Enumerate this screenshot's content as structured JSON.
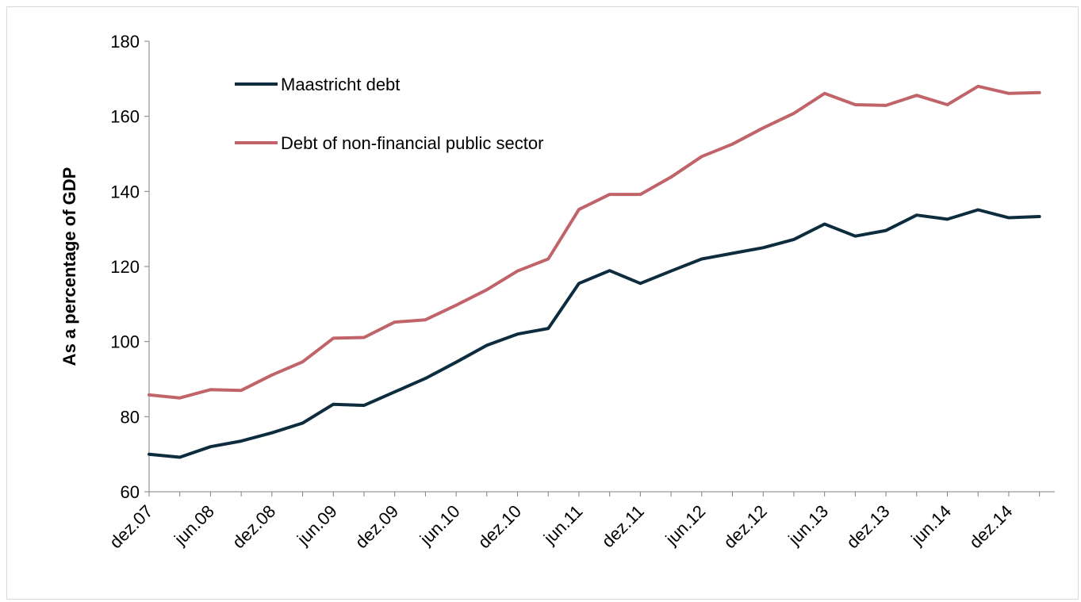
{
  "chart_data": {
    "type": "line",
    "ylabel": "As a percentage of GDP",
    "xlabel": "",
    "ylim": [
      60,
      180
    ],
    "yticks": [
      60,
      80,
      100,
      120,
      140,
      160,
      180
    ],
    "x": [
      "dez.07",
      "mar.08",
      "jun.08",
      "set.08",
      "dez.08",
      "mar.09",
      "jun.09",
      "set.09",
      "dez.09",
      "mar.10",
      "jun.10",
      "set.10",
      "dez.10",
      "mar.11",
      "jun.11",
      "set.11",
      "dez.11",
      "mar.12",
      "jun.12",
      "set.12",
      "dez.12",
      "mar.13",
      "jun.13",
      "set.13",
      "dez.13",
      "mar.14",
      "jun.14",
      "set.14",
      "dez.14",
      "mar.15"
    ],
    "tick_labels": [
      "dez.07",
      "jun.08",
      "dez.08",
      "jun.09",
      "dez.09",
      "jun.10",
      "dez.10",
      "jun.11",
      "dez.11",
      "jun.12",
      "dez.12",
      "jun.13",
      "dez.13",
      "jun.14",
      "dez.14"
    ],
    "series": [
      {
        "name": "Maastricht debt",
        "color": "#0d2d3f",
        "values": [
          70.0,
          69.2,
          72.0,
          73.5,
          75.7,
          78.3,
          83.3,
          83.0,
          86.6,
          90.2,
          94.5,
          99.0,
          102.0,
          103.5,
          115.5,
          118.9,
          115.5,
          118.8,
          122.0,
          123.5,
          125.0,
          127.2,
          131.3,
          128.1,
          129.6,
          133.7,
          132.6,
          135.1,
          133.0,
          133.3
        ]
      },
      {
        "name": "Debt of non-financial public sector",
        "color": "#c0646a",
        "values": [
          85.8,
          85.0,
          87.2,
          87.0,
          91.1,
          94.6,
          100.9,
          101.1,
          105.2,
          105.8,
          109.7,
          113.8,
          118.8,
          122.0,
          135.2,
          139.2,
          139.2,
          143.8,
          149.3,
          152.6,
          156.9,
          160.8,
          166.1,
          163.1,
          162.9,
          165.6,
          163.1,
          168.0,
          166.1,
          166.3
        ]
      }
    ],
    "legend_position": "top-left",
    "grid": false
  }
}
